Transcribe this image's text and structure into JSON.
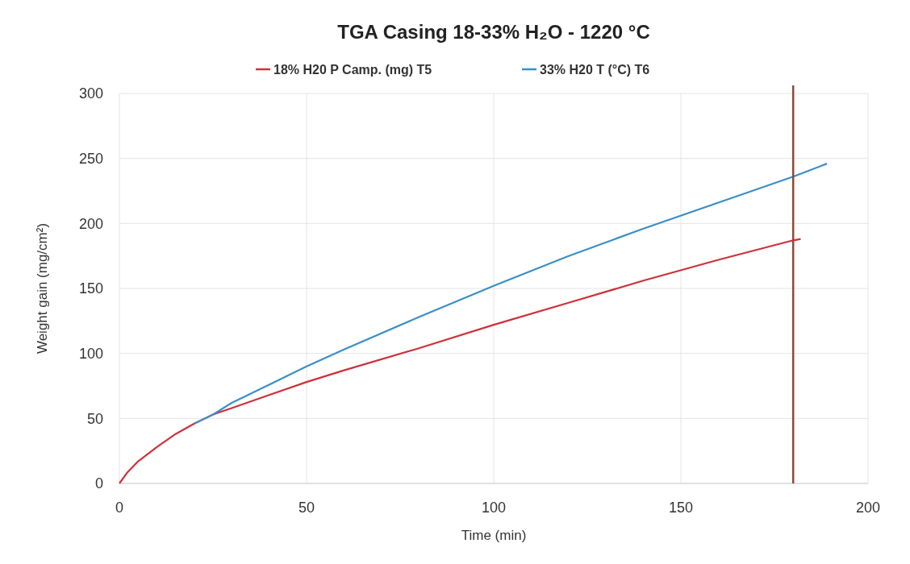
{
  "chart_data": {
    "type": "line",
    "title": "TGA Casing 18-33% H₂O - 1220 °C",
    "xlabel": "Time (min)",
    "ylabel": "Weight gain (mg/cm²)",
    "xlim": [
      0,
      200
    ],
    "xticks": [
      0,
      50,
      100,
      150,
      200
    ],
    "ylim": [
      0,
      300
    ],
    "yticks": [
      0,
      50,
      100,
      150,
      200,
      250,
      300
    ],
    "grid": true,
    "legend": "top",
    "line_style": "solid",
    "ref_lines": [
      {
        "axis": "x",
        "value": 180,
        "color": "#8b4a3a"
      }
    ],
    "series": [
      {
        "name": "18% H20 P Camp. (mg) T5",
        "color": "#d0303a",
        "x": [
          0,
          2,
          5,
          10,
          15,
          20,
          25,
          30,
          40,
          50,
          60,
          80,
          100,
          120,
          140,
          160,
          180,
          182
        ],
        "values": [
          0,
          8,
          17,
          28,
          38,
          46,
          53,
          58,
          68,
          78,
          87,
          104,
          122,
          139,
          156,
          172,
          187,
          188
        ]
      },
      {
        "name": "33% H20 T (°C) T6",
        "color": "#3a8fc8",
        "x": [
          20,
          25,
          30,
          40,
          50,
          60,
          80,
          100,
          120,
          140,
          160,
          180,
          189
        ],
        "values": [
          46,
          53,
          62,
          76,
          90,
          103,
          128,
          152,
          175,
          196,
          216,
          236,
          246
        ]
      }
    ]
  }
}
